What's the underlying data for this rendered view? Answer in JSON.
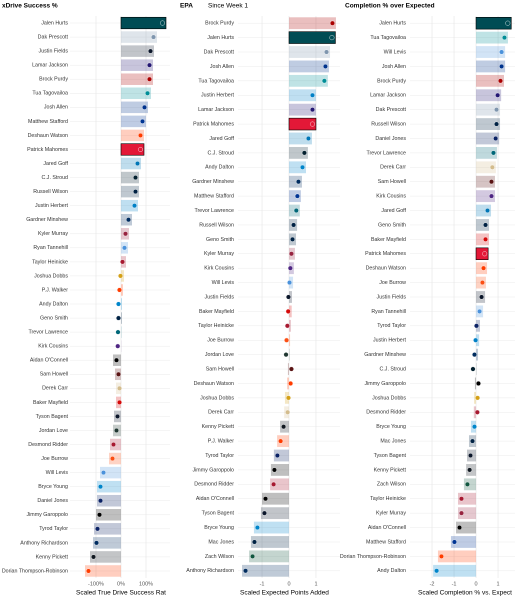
{
  "player_colors": {
    "Jalen Hurts": "#004C54",
    "Dak Prescott": "#7F96AE",
    "Justin Fields": "#0B162A",
    "Lamar Jackson": "#241773",
    "Brock Purdy": "#AA0000",
    "Tua Tagovailoa": "#008E97",
    "Josh Allen": "#00338D",
    "Matthew Stafford": "#003594",
    "Deshaun Watson": "#FF3C00",
    "Patrick Mahomes": "#E31837",
    "Jared Goff": "#0076B6",
    "C.J. Stroud": "#03202F",
    "Russell Wilson": "#002244",
    "Justin Herbert": "#0080C6",
    "Gardner Minshew": "#002C5F",
    "Kyler Murray": "#97233F",
    "Ryan Tannehill": "#4B92DB",
    "Taylor Heinicke": "#A71930",
    "Joshua Dobbs": "#D4A017",
    "P.J. Walker": "#FF3C00",
    "Andy Dalton": "#0085CA",
    "Geno Smith": "#002244",
    "Trevor Lawrence": "#006778",
    "Kirk Cousins": "#4F2683",
    "Aidan O'Connell": "#000000",
    "Sam Howell": "#5A1414",
    "Derek Carr": "#D3BC8D",
    "Baker Mayfield": "#D50A0A",
    "Tyson Bagent": "#0B162A",
    "Jordan Love": "#203731",
    "Desmond Ridder": "#A71930",
    "Joe Burrow": "#FB4F14",
    "Will Levis": "#4B92DB",
    "Bryce Young": "#0085CA",
    "Daniel Jones": "#0B2265",
    "Jimmy Garoppolo": "#000000",
    "Tyrod Taylor": "#0B2265",
    "Anthony Richardson": "#002C5F",
    "Kenny Pickett": "#101820",
    "Dorian Thompson-Robinson": "#FF3C00",
    "Mac Jones": "#002244",
    "Zach Wilson": "#125740"
  },
  "highlight": [
    "Jalen Hurts",
    "Patrick Mahomes"
  ],
  "chart_data": [
    {
      "type": "bar",
      "orientation": "horizontal",
      "title": "xDrive Success %",
      "x_label": "Scaled True Drive Success Rat",
      "categories": [
        "Jalen Hurts",
        "Dak Prescott",
        "Justin Fields",
        "Lamar Jackson",
        "Brock Purdy",
        "Tua Tagovailoa",
        "Josh Allen",
        "Matthew Stafford",
        "Deshaun Watson",
        "Patrick Mahomes",
        "Jared Goff",
        "C.J. Stroud",
        "Russell Wilson",
        "Justin Herbert",
        "Gardner Minshew",
        "Kyler Murray",
        "Ryan Tannehill",
        "Taylor Heinicke",
        "Joshua Dobbs",
        "P.J. Walker",
        "Andy Dalton",
        "Geno Smith",
        "Trevor Lawrence",
        "Kirk Cousins",
        "Aidan O'Connell",
        "Sam Howell",
        "Derek Carr",
        "Baker Mayfield",
        "Tyson Bagent",
        "Jordan Love",
        "Desmond Ridder",
        "Joe Burrow",
        "Will Levis",
        "Bryce Young",
        "Daniel Jones",
        "Jimmy Garoppolo",
        "Tyrod Taylor",
        "Anthony Richardson",
        "Kenny Pickett",
        "Dorian Thompson-Robinson"
      ],
      "values": [
        180,
        144,
        132,
        128,
        128,
        120,
        108,
        100,
        92,
        92,
        80,
        72,
        72,
        68,
        44,
        32,
        28,
        20,
        12,
        8,
        4,
        4,
        2,
        1,
        -32,
        -24,
        -20,
        -20,
        -28,
        -32,
        -44,
        -48,
        -84,
        -96,
        -96,
        -100,
        -108,
        -112,
        -124,
        -144
      ],
      "xlim": [
        -204,
        196
      ],
      "xticks": [
        {
          "value": -100,
          "label": "-100%"
        },
        {
          "value": 0,
          "label": "0%"
        },
        {
          "value": 100,
          "label": "100%"
        }
      ],
      "grid": true
    },
    {
      "type": "bar",
      "orientation": "horizontal",
      "title": "EPA",
      "subtitle": "Since Week 1",
      "x_label": "Scaled Expected Points Added",
      "categories": [
        "Brock Purdy",
        "Jalen Hurts",
        "Dak Prescott",
        "Josh Allen",
        "Tua Tagovailoa",
        "Justin Herbert",
        "Lamar Jackson",
        "Patrick Mahomes",
        "Jared Goff",
        "C.J. Stroud",
        "Andy Dalton",
        "Gardner Minshew",
        "Matthew Stafford",
        "Trevor Lawrence",
        "Russell Wilson",
        "Geno Smith",
        "Kyler Murray",
        "Kirk Cousins",
        "Will Levis",
        "Justin Fields",
        "Baker Mayfield",
        "Taylor Heinicke",
        "Joe Burrow",
        "Jordan Love",
        "Sam Howell",
        "Deshaun Watson",
        "Joshua Dobbs",
        "Derek Carr",
        "Kenny Pickett",
        "P.J. Walker",
        "Tyrod Taylor",
        "Jimmy Garoppolo",
        "Desmond Ridder",
        "Aidan O'Connell",
        "Tyson Bagent",
        "Bryce Young",
        "Mac Jones",
        "Zach Wilson",
        "Anthony Richardson"
      ],
      "values": [
        1.74,
        1.72,
        1.52,
        1.48,
        1.44,
        1.0,
        1.0,
        1.0,
        0.85,
        0.7,
        0.63,
        0.48,
        0.44,
        0.4,
        0.3,
        0.26,
        0.22,
        0.18,
        0.15,
        0.11,
        0.1,
        0.07,
        0.04,
        0.02,
        -0.04,
        -0.07,
        -0.15,
        -0.18,
        -0.33,
        -0.44,
        -0.56,
        -0.67,
        -0.7,
        -1.0,
        -1.04,
        -1.3,
        -1.41,
        -1.48,
        -1.74
      ],
      "xlim": [
        -1.89,
        1.89
      ],
      "xticks": [
        -1,
        0,
        1
      ],
      "grid": true
    },
    {
      "type": "bar",
      "orientation": "horizontal",
      "title": "Completion % over Expected",
      "x_label": "Scaled Completion % vs. Expect",
      "categories": [
        "Jalen Hurts",
        "Tua Tagovailoa",
        "Will Levis",
        "Josh Allen",
        "Brock Purdy",
        "Lamar Jackson",
        "Dak Prescott",
        "Russell Wilson",
        "Daniel Jones",
        "Trevor Lawrence",
        "Derek Carr",
        "Sam Howell",
        "Kirk Cousins",
        "Jared Goff",
        "Geno Smith",
        "Baker Mayfield",
        "Patrick Mahomes",
        "Deshaun Watson",
        "Joe Burrow",
        "Justin Fields",
        "Ryan Tannehill",
        "Tyrod Taylor",
        "Justin Herbert",
        "Gardner Minshew",
        "C.J. Stroud",
        "Jimmy Garoppolo",
        "Joshua Dobbs",
        "Desmond Ridder",
        "Bryce Young",
        "Mac Jones",
        "Tyson Bagent",
        "Kenny Pickett",
        "Zach Wilson",
        "Taylor Heinicke",
        "Kyler Murray",
        "Aidan O'Connell",
        "Matthew Stafford",
        "Dorian Thompson-Robinson",
        "Andy Dalton"
      ],
      "values": [
        1.6,
        1.45,
        1.32,
        1.32,
        1.27,
        1.14,
        1.09,
        1.09,
        1.05,
        0.95,
        0.9,
        0.86,
        0.86,
        0.68,
        0.59,
        0.59,
        0.55,
        0.5,
        0.45,
        0.41,
        0.32,
        0.18,
        0.14,
        0.09,
        0.02,
        -0.05,
        -0.09,
        -0.1,
        -0.23,
        -0.32,
        -0.41,
        -0.45,
        -0.55,
        -0.82,
        -0.82,
        -0.91,
        -1.14,
        -1.73,
        -1.95
      ],
      "xlim": [
        -3.0,
        1.77
      ],
      "xticks": [
        -2,
        -1,
        0,
        1
      ],
      "grid": true
    }
  ]
}
